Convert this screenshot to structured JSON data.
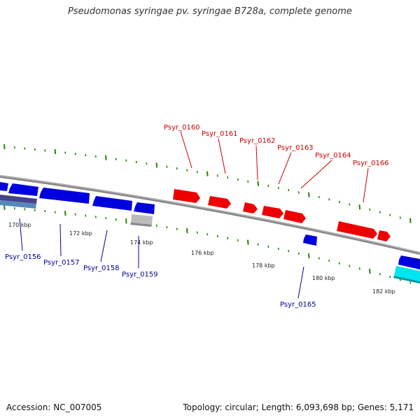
{
  "title": "Pseudomonas syringae pv. syringae B728a, complete genome",
  "footer": {
    "accession": "Accession: NC_007005",
    "summary": "Topology: circular; Length: 6,093,698 bp; Genes: 5,171"
  },
  "colors": {
    "forward": "#ee0000",
    "reverse": "#0000dd",
    "label_forward": "#cc0000",
    "label_reverse": "#000099",
    "tick": "#228800",
    "backbone": "#888888",
    "cyan": "#00e5f0",
    "grey": "#bbbbbb"
  },
  "kbp_ticks": [
    "170 kbp",
    "172 kbp",
    "174 kbp",
    "176 kbp",
    "178 kbp",
    "180 kbp",
    "182 kbp"
  ],
  "genes_top": [
    "Psyr_0160",
    "Psyr_0161",
    "Psyr_0162",
    "Psyr_0163",
    "Psyr_0164",
    "Psyr_0166"
  ],
  "genes_bottom": [
    "Psyr_0156",
    "Psyr_0157",
    "Psyr_0158",
    "Psyr_0159",
    "Psyr_0165"
  ]
}
